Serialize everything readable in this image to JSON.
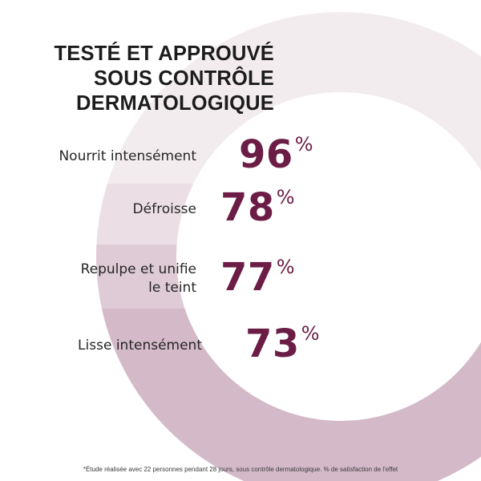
{
  "title": {
    "line1": "TESTÉ ET APPROUVÉ",
    "line2": "SOUS CONTRÔLE",
    "line3": "DERMATOLOGIQUE"
  },
  "results": [
    {
      "label": "Nourrit intensément",
      "value": "96",
      "unit": "%"
    },
    {
      "label": "Défroisse",
      "value": "78",
      "unit": "%"
    },
    {
      "label": "Repulpe et unifie\nle teint",
      "value": "77",
      "unit": "%"
    },
    {
      "label": "Lisse intensément",
      "value": "73",
      "unit": "%"
    }
  ],
  "footnote": "*Étude réalisée avec 22 personnes pendant 28 jours, sous contrôle dermatologique. % de satisfaction de l'effet",
  "colors": {
    "value_text": "#6b1d45",
    "ring_band_1": "#f3ecef",
    "ring_band_2": "#ebdfe5",
    "ring_band_3": "#dfcbd5",
    "ring_band_4": "#d4bac8"
  }
}
